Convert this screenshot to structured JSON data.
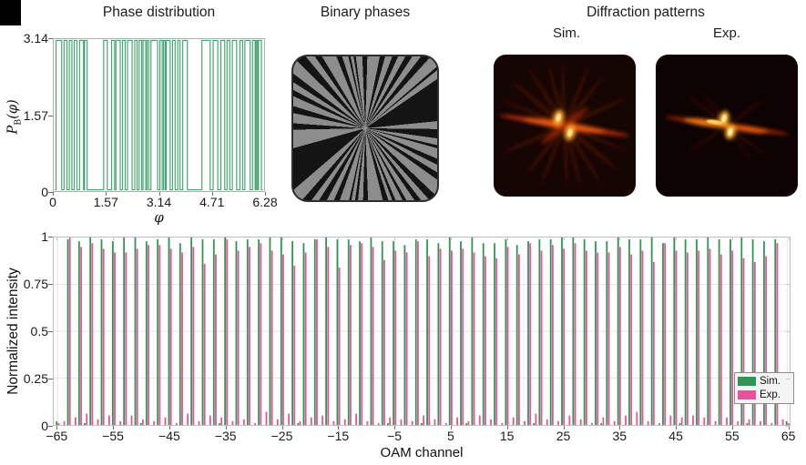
{
  "figure": {
    "background": "#ffffff",
    "corner_marker_color": "#000000"
  },
  "panels": {
    "phase": {
      "title": "Phase distribution",
      "xlabel": "φ",
      "ylabel_p": "P",
      "ylabel_sub": "B",
      "ylabel_rest": "(φ)",
      "line_color": "#3fa56c",
      "spine_color": "#b0b0b0"
    },
    "binary": {
      "title": "Binary phases",
      "gray": "#8d8d8d",
      "black": "#141414"
    },
    "diffraction": {
      "title": "Diffraction patterns",
      "sim_label": "Sim.",
      "exp_label": "Exp."
    },
    "bars": {
      "ylabel": "Normalized intensity",
      "xlabel": "OAM channel",
      "grid_color": "#e6e6e6",
      "spine_color": "#c0c0c0",
      "legend_bg": "#f4f4f4"
    }
  },
  "chart_data": [
    {
      "type": "line",
      "title": "Phase distribution",
      "xlabel": "φ",
      "ylabel": "P_B(φ)",
      "xlim": [
        0,
        6.28
      ],
      "ylim": [
        0,
        3.14
      ],
      "xticks": [
        0,
        1.57,
        3.14,
        4.71,
        6.28
      ],
      "xtick_labels": [
        "0",
        "1.57",
        "3.14",
        "4.71",
        "6.28"
      ],
      "yticks": [
        0,
        1.57,
        3.14
      ],
      "ytick_labels": [
        "0",
        "1.57",
        "3.14"
      ],
      "series_color": "#3fa56c",
      "waveform": "binary square wave alternating between 0 and 3.14",
      "high_segments": [
        [
          0.03,
          0.2
        ],
        [
          0.27,
          0.36
        ],
        [
          0.43,
          0.51
        ],
        [
          0.58,
          0.66
        ],
        [
          0.74,
          0.86
        ],
        [
          0.89,
          0.97
        ],
        [
          1.47,
          1.58
        ],
        [
          1.71,
          1.8
        ],
        [
          1.84,
          1.97
        ],
        [
          2.04,
          2.12
        ],
        [
          2.19,
          2.33
        ],
        [
          2.41,
          2.48
        ],
        [
          2.54,
          2.62
        ],
        [
          2.66,
          2.74
        ],
        [
          2.78,
          2.83
        ],
        [
          2.9,
          3.1
        ],
        [
          3.17,
          3.24
        ],
        [
          3.28,
          3.33
        ],
        [
          3.36,
          3.48
        ],
        [
          3.55,
          3.63
        ],
        [
          3.71,
          3.78
        ],
        [
          3.86,
          4.0
        ],
        [
          4.44,
          4.69
        ],
        [
          4.78,
          4.92
        ],
        [
          5.01,
          5.13
        ],
        [
          5.2,
          5.28
        ],
        [
          5.36,
          5.49
        ],
        [
          5.59,
          5.67
        ],
        [
          5.74,
          5.9
        ],
        [
          5.97,
          6.05
        ],
        [
          6.08,
          6.12
        ],
        [
          6.15,
          6.24
        ]
      ]
    },
    {
      "type": "bar",
      "xlabel": "OAM channel",
      "ylabel": "Normalized intensity",
      "xlim": [
        -66,
        66
      ],
      "ylim": [
        0,
        1
      ],
      "x_start": -65,
      "x_step": 1,
      "xticks": [
        -65,
        -55,
        -45,
        -35,
        -25,
        -15,
        -5,
        5,
        15,
        25,
        35,
        45,
        55,
        65
      ],
      "xtick_labels": [
        "−65",
        "−55",
        "−45",
        "−35",
        "−25",
        "−15",
        "−5",
        "5",
        "15",
        "25",
        "35",
        "45",
        "55",
        "65"
      ],
      "yticks": [
        0,
        0.25,
        0.5,
        0.75,
        1
      ],
      "ytick_labels": [
        "0",
        "0.25",
        "0.5",
        "0.75",
        "1"
      ],
      "grid": true,
      "legend_position": "lower right",
      "series": [
        {
          "name": "Sim.",
          "color": "#2f9751",
          "values": [
            0.02,
            0,
            0.99,
            0,
            0.98,
            0.01,
            1,
            0,
            0.99,
            0,
            0.98,
            0,
            1,
            0,
            1,
            0.01,
            0.98,
            0,
            0.99,
            0,
            1,
            0,
            0.97,
            0,
            1,
            0,
            0.99,
            0,
            0.99,
            0.01,
            1,
            0,
            0.98,
            0,
            0.99,
            0,
            0.99,
            0,
            1,
            0,
            1,
            0,
            0.98,
            0.01,
            0.97,
            0,
            0.99,
            0,
            1,
            0,
            0.99,
            0,
            0.99,
            0,
            0.98,
            0,
            1,
            0,
            0.98,
            0.01,
            0.98,
            0,
            0.96,
            0,
            0.99,
            0.01,
            0.99,
            0,
            0.97,
            0,
            1,
            0,
            0.98,
            0.01,
            1,
            0,
            0.97,
            0,
            0.97,
            0,
            0.99,
            0,
            0.96,
            0,
            0.98,
            0.01,
            0.99,
            0,
            0.99,
            0,
            1,
            0,
            1,
            0,
            0.99,
            0,
            0.98,
            0.01,
            0.98,
            0,
            1,
            0,
            0.99,
            0,
            0.99,
            0,
            1,
            0,
            0.97,
            0,
            1,
            0.01,
            0.99,
            0,
            0.99,
            0,
            1,
            0,
            0.99,
            0,
            0.99,
            0,
            1,
            0.01,
            0.99,
            0,
            0.98,
            0,
            0.99,
            0,
            0.02
          ]
        },
        {
          "name": "Exp.",
          "color": "#e5539b",
          "values": [
            0.01,
            0.02,
            1,
            0.04,
            0.95,
            0.06,
            0.97,
            0.03,
            0.94,
            0.05,
            0.92,
            0.02,
            0.92,
            0.05,
            0.94,
            0.03,
            0.96,
            0.02,
            0.96,
            0.04,
            0.94,
            0.01,
            0.92,
            0.06,
            0.95,
            0.02,
            0.86,
            0.05,
            0.91,
            0.04,
            0.99,
            0.02,
            0.93,
            0.03,
            0.95,
            0.01,
            0.97,
            0.07,
            0.93,
            0.03,
            0.91,
            0.06,
            0.85,
            0.02,
            0.92,
            0.04,
            0.99,
            0.05,
            0.95,
            0.02,
            0.84,
            0.03,
            0.96,
            0.06,
            0.97,
            0.02,
            0.95,
            0.01,
            0.88,
            0.04,
            0.93,
            0.03,
            0.92,
            0.02,
            0.98,
            0.05,
            0.9,
            0.03,
            0.94,
            0.01,
            0.93,
            0.04,
            0.94,
            0.02,
            0.92,
            0.05,
            0.9,
            0.03,
            0.89,
            0.01,
            0.95,
            0.04,
            0.91,
            0.02,
            0.97,
            0.06,
            0.93,
            0.03,
            0.96,
            0.02,
            0.94,
            0.05,
            0.97,
            0.03,
            0.93,
            0.01,
            0.92,
            0.04,
            0.92,
            0.02,
            0.95,
            0.05,
            0.91,
            0.07,
            0.93,
            0.02,
            0.87,
            0.01,
            0.97,
            0.05,
            0.93,
            0.04,
            0.92,
            0.05,
            0.93,
            0.04,
            0.94,
            0.02,
            0.91,
            0.04,
            0.93,
            0.02,
            0.89,
            0.03,
            0.87,
            0.02,
            0.9,
            0.01,
            0.97,
            0.03,
            0.01
          ]
        }
      ]
    }
  ]
}
